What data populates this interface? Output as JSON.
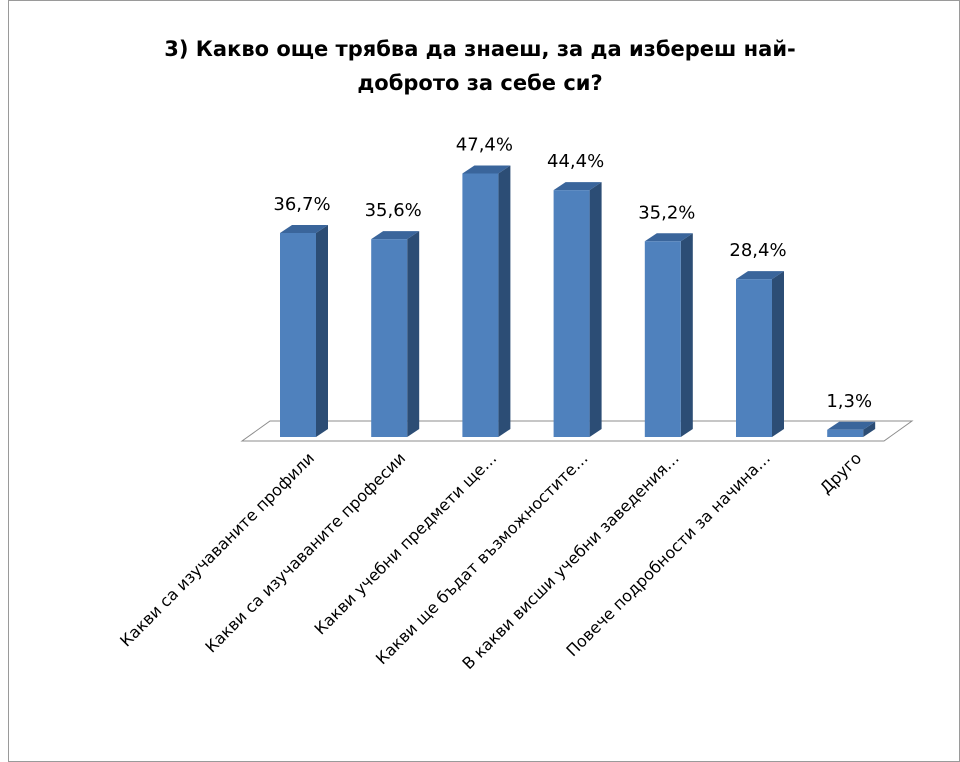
{
  "chart_data": {
    "type": "bar3d",
    "title": [
      "3) Какво още трябва да знаеш, за да избереш най-",
      "доброто за себе си?"
    ],
    "categories": [
      "Какви са изучаваните профили",
      "Какви са изучаваните професии",
      "Какви учебни предмети ще…",
      "Какви ще бъдат възможностите…",
      "В какви висши учебни заведения…",
      "Повече подробности за начина…",
      "Друго"
    ],
    "values": [
      36.7,
      35.6,
      47.4,
      44.4,
      35.2,
      28.4,
      1.3
    ],
    "value_labels": [
      "36,7%",
      "35,6%",
      "47,4%",
      "44,4%",
      "35,2%",
      "28,4%",
      "1,3%"
    ],
    "color": "#4f81bd",
    "ylim": [
      0,
      50
    ]
  }
}
